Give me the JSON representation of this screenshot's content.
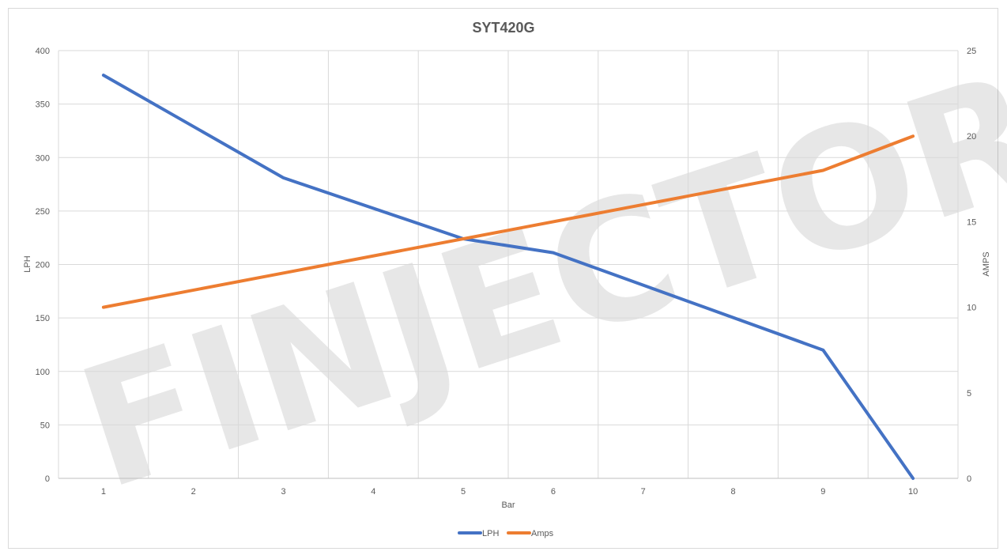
{
  "chart_data": {
    "type": "line",
    "title": "SYT420G",
    "xlabel": "Bar",
    "ylabel": "LPH",
    "y2label": "AMPS",
    "categories": [
      "1",
      "2",
      "3",
      "4",
      "5",
      "6",
      "7",
      "8",
      "9",
      "10"
    ],
    "x": [
      1,
      2,
      3,
      4,
      5,
      6,
      7,
      8,
      9,
      10
    ],
    "ylim": [
      0,
      400
    ],
    "y2lim": [
      0,
      25
    ],
    "yticks": [
      "0",
      "50",
      "100",
      "150",
      "200",
      "250",
      "300",
      "350",
      "400"
    ],
    "y2ticks": [
      "0",
      "5",
      "10",
      "15",
      "20",
      "25"
    ],
    "grid": true,
    "legend_position": "bottom",
    "series": [
      {
        "name": "LPH",
        "axis": "left",
        "color": "#4472c4",
        "x": [
          1,
          3,
          5,
          6,
          9,
          10
        ],
        "values": [
          377,
          281,
          224,
          211,
          120,
          0
        ]
      },
      {
        "name": "Amps",
        "axis": "right",
        "color": "#ed7d31",
        "x": [
          1,
          9,
          10
        ],
        "values": [
          10,
          18,
          20
        ]
      }
    ],
    "watermark": "FINJECTOR.com"
  }
}
